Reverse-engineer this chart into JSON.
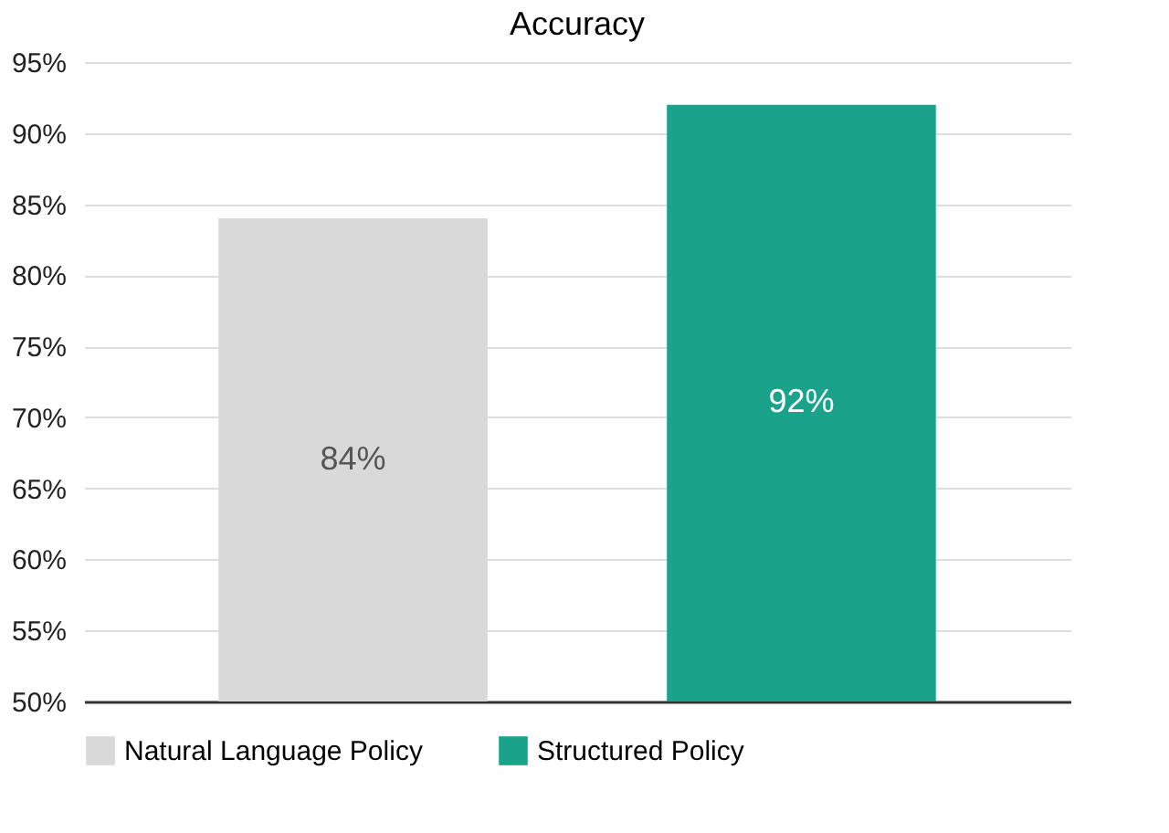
{
  "chart_data": {
    "type": "bar",
    "title": "Accuracy",
    "categories": [
      null,
      null
    ],
    "series": [
      {
        "name": "Natural Language Policy",
        "color": "#d9d9d9",
        "values": [
          84,
          null
        ],
        "value_labels": [
          "84%",
          null
        ]
      },
      {
        "name": "Structured Policy",
        "color": "#1aa38a",
        "values": [
          null,
          92
        ],
        "value_labels": [
          null,
          "92%"
        ]
      }
    ],
    "ylim": [
      50,
      95
    ],
    "yticks": [
      {
        "value": 50,
        "label": "50%"
      },
      {
        "value": 55,
        "label": "55%"
      },
      {
        "value": 60,
        "label": "60%"
      },
      {
        "value": 65,
        "label": "65%"
      },
      {
        "value": 70,
        "label": "70%"
      },
      {
        "value": 75,
        "label": "75%"
      },
      {
        "value": 80,
        "label": "80%"
      },
      {
        "value": 85,
        "label": "85%"
      },
      {
        "value": 90,
        "label": "90%"
      },
      {
        "value": 95,
        "label": "95%"
      }
    ],
    "grid": "y",
    "legend": "bottom",
    "tick_labels": "y"
  }
}
